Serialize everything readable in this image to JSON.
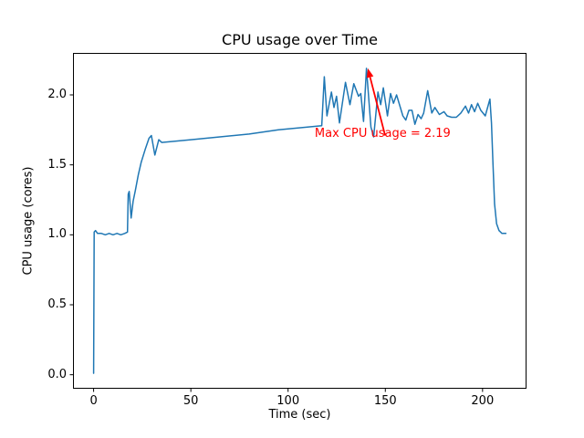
{
  "chart_data": {
    "type": "line",
    "title": "CPU usage over Time",
    "xlabel": "Time (sec)",
    "ylabel": "CPU usage (cores)",
    "xlim": [
      -10.6,
      222.6
    ],
    "ylim": [
      -0.1,
      2.3
    ],
    "xticks": [
      0,
      50,
      100,
      150,
      200
    ],
    "xtick_labels": [
      "0",
      "50",
      "100",
      "150",
      "200"
    ],
    "yticks": [
      0.0,
      0.5,
      1.0,
      1.5,
      2.0
    ],
    "ytick_labels": [
      "0.0",
      "0.5",
      "1.0",
      "1.5",
      "2.0"
    ],
    "grid": false,
    "legend": "none",
    "background_color": "#ffffff",
    "spine_color": "#000000",
    "series": [
      {
        "name": "CPU usage",
        "color": "#1f77b4",
        "points": [
          [
            0,
            0.01
          ],
          [
            0.3,
            1.02
          ],
          [
            1,
            1.03
          ],
          [
            2,
            1.01
          ],
          [
            4,
            1.01
          ],
          [
            6,
            1.0
          ],
          [
            8,
            1.01
          ],
          [
            10,
            1.0
          ],
          [
            12,
            1.01
          ],
          [
            14,
            1.0
          ],
          [
            16,
            1.01
          ],
          [
            17.4,
            1.02
          ],
          [
            17.8,
            1.29
          ],
          [
            18.3,
            1.31
          ],
          [
            19.3,
            1.12
          ],
          [
            20.3,
            1.24
          ],
          [
            21.5,
            1.32
          ],
          [
            23,
            1.43
          ],
          [
            24.5,
            1.52
          ],
          [
            26.5,
            1.61
          ],
          [
            28.5,
            1.69
          ],
          [
            29.7,
            1.71
          ],
          [
            31.5,
            1.57
          ],
          [
            33.5,
            1.68
          ],
          [
            35,
            1.66
          ],
          [
            50,
            1.68
          ],
          [
            65,
            1.7
          ],
          [
            80,
            1.72
          ],
          [
            95,
            1.75
          ],
          [
            110,
            1.77
          ],
          [
            117.3,
            1.78
          ],
          [
            118.6,
            2.13
          ],
          [
            120,
            1.85
          ],
          [
            122.3,
            2.02
          ],
          [
            123.6,
            1.91
          ],
          [
            124.9,
            1.99
          ],
          [
            126.4,
            1.8
          ],
          [
            129.5,
            2.09
          ],
          [
            131.8,
            1.93
          ],
          [
            133.8,
            2.08
          ],
          [
            136.2,
            1.99
          ],
          [
            137.4,
            2.01
          ],
          [
            138.8,
            1.81
          ],
          [
            140.3,
            2.19
          ],
          [
            142.6,
            1.77
          ],
          [
            144,
            1.7
          ],
          [
            146.2,
            2.02
          ],
          [
            147.6,
            1.93
          ],
          [
            149,
            2.05
          ],
          [
            151.1,
            1.85
          ],
          [
            152.7,
            2.01
          ],
          [
            154.2,
            1.94
          ],
          [
            155.8,
            2.0
          ],
          [
            159,
            1.85
          ],
          [
            160.5,
            1.82
          ],
          [
            162.1,
            1.89
          ],
          [
            163.7,
            1.89
          ],
          [
            165.2,
            1.79
          ],
          [
            166.8,
            1.86
          ],
          [
            168.4,
            1.83
          ],
          [
            169.7,
            1.87
          ],
          [
            171.8,
            2.03
          ],
          [
            173.9,
            1.87
          ],
          [
            175.5,
            1.91
          ],
          [
            177.8,
            1.86
          ],
          [
            180.2,
            1.88
          ],
          [
            181.8,
            1.85
          ],
          [
            184.1,
            1.84
          ],
          [
            186.5,
            1.84
          ],
          [
            188.8,
            1.87
          ],
          [
            191.2,
            1.92
          ],
          [
            192.8,
            1.87
          ],
          [
            194.3,
            1.93
          ],
          [
            195.9,
            1.88
          ],
          [
            197.5,
            1.94
          ],
          [
            199.1,
            1.89
          ],
          [
            201.4,
            1.85
          ],
          [
            203.8,
            1.97
          ],
          [
            204.6,
            1.8
          ],
          [
            205.4,
            1.5
          ],
          [
            206.2,
            1.22
          ],
          [
            207.2,
            1.08
          ],
          [
            208.5,
            1.03
          ],
          [
            210,
            1.01
          ],
          [
            212,
            1.01
          ]
        ]
      }
    ],
    "annotation": {
      "text": "Max CPU usage = 2.19",
      "color": "#ff0000",
      "xy": [
        141.0,
        2.19
      ],
      "text_xy": [
        113.7,
        1.7
      ],
      "arrow_tail_xy": [
        149.9,
        1.71
      ]
    }
  }
}
